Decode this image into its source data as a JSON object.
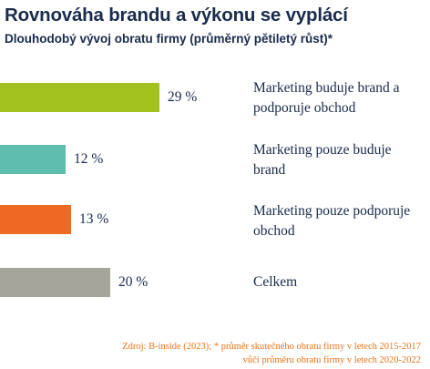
{
  "chart_data": {
    "type": "bar",
    "orientation": "horizontal",
    "title": "Rovnováha brandu a výkonu se vyplácí",
    "subtitle": "Dlouhodobý vývoj obratu firmy (průměrný pětiletý růst)*",
    "categories": [
      "Marketing buduje brand a podporuje obchod",
      "Marketing pouze buduje brand",
      "Marketing pouze podporuje obchod",
      "Celkem"
    ],
    "values": [
      29,
      12,
      13,
      20
    ],
    "value_labels": [
      "29 %",
      "12 %",
      "13 %",
      "20 %"
    ],
    "colors": [
      "#a3c11e",
      "#5fbdb0",
      "#ee6a22",
      "#a6a59c"
    ],
    "xlim": [
      0,
      29
    ],
    "grid": false,
    "legend": "none"
  },
  "footnote": {
    "line1": "Zdroj: B-inside (2023); * průměr skutečného obratu firmy v letech 2015-2017",
    "line2": "vůči průměru obratu firmy v letech 2020-2022"
  }
}
